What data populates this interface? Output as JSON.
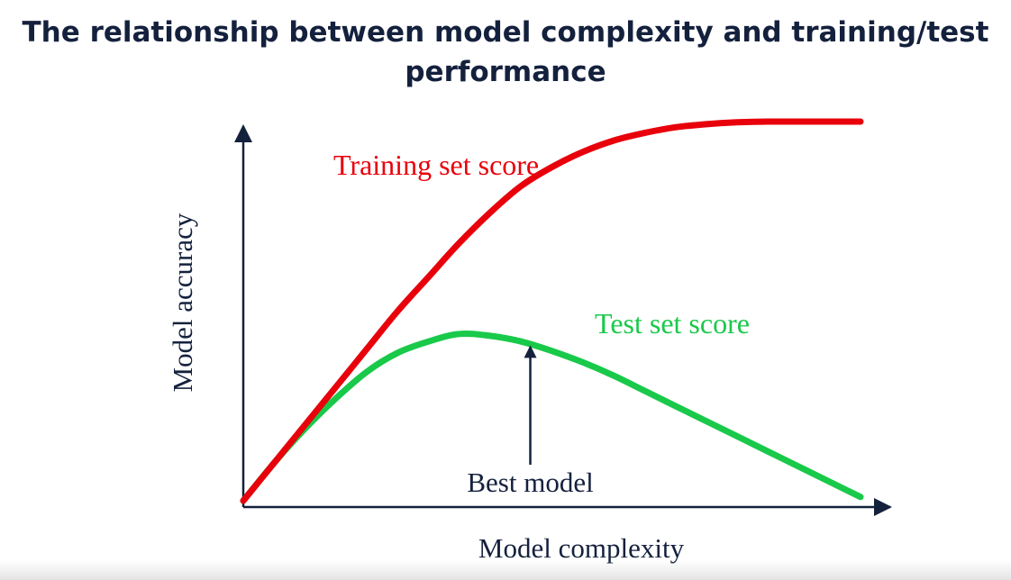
{
  "title_line1": "The relationship between model complexity and training/test",
  "title_line2": "performance",
  "chart_data": {
    "type": "line",
    "xlabel": "Model complexity",
    "ylabel": "Model accuracy",
    "xlim": [
      0,
      100
    ],
    "ylim": [
      0,
      100
    ],
    "grid": false,
    "legend": "none",
    "series": [
      {
        "name": "Training set score",
        "color": "#e8000b",
        "x": [
          0,
          5,
          10,
          15,
          20,
          25,
          30,
          35,
          40,
          45,
          50,
          55,
          60,
          65,
          70,
          75,
          80,
          85,
          90,
          95,
          100
        ],
        "y": [
          0,
          10,
          20,
          30,
          40,
          50,
          59,
          68,
          76,
          83,
          88,
          92,
          95,
          97,
          98.5,
          99.3,
          99.8,
          100,
          100,
          100,
          100
        ]
      },
      {
        "name": "Test set score",
        "color": "#19c94a",
        "x": [
          0,
          5,
          10,
          15,
          20,
          25,
          30,
          35,
          40,
          45,
          50,
          55,
          60,
          65,
          70,
          75,
          80,
          85,
          90,
          95,
          100
        ],
        "y": [
          0,
          10,
          19,
          27,
          34,
          39,
          42,
          44,
          43.5,
          42,
          39.5,
          36.5,
          33,
          29,
          25,
          21,
          17,
          13,
          9,
          5,
          1
        ]
      }
    ],
    "annotations": [
      {
        "text": "Best model",
        "x": 46.5,
        "arrow_top_y": 41
      }
    ],
    "label_color": "#14213d"
  }
}
